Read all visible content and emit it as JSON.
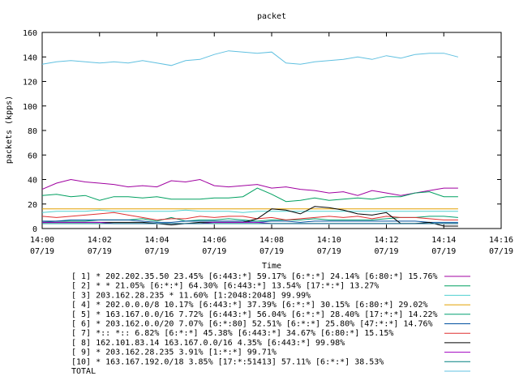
{
  "chart_data": {
    "type": "line",
    "title": "packet",
    "xlabel": "Time",
    "ylabel": "packets (kpps)",
    "ylim": [
      0,
      160
    ],
    "yticks": [
      0,
      20,
      40,
      60,
      80,
      100,
      120,
      140,
      160
    ],
    "xlim": [
      "14:00",
      "14:16"
    ],
    "xticks": [
      {
        "time": "14:00",
        "date": "07/19"
      },
      {
        "time": "14:02",
        "date": "07/19"
      },
      {
        "time": "14:04",
        "date": "07/19"
      },
      {
        "time": "14:06",
        "date": "07/19"
      },
      {
        "time": "14:08",
        "date": "07/19"
      },
      {
        "time": "14:10",
        "date": "07/19"
      },
      {
        "time": "14:12",
        "date": "07/19"
      },
      {
        "time": "14:14",
        "date": "07/19"
      },
      {
        "time": "14:16",
        "date": "07/19"
      }
    ],
    "grid": false,
    "legend_position": "bottom",
    "x": [
      0,
      0.5,
      1,
      1.5,
      2,
      2.5,
      3,
      3.5,
      4,
      4.5,
      5,
      5.5,
      6,
      6.5,
      7,
      7.5,
      8,
      8.5,
      9,
      9.5,
      10,
      10.5,
      11,
      11.5,
      12,
      12.5,
      13,
      13.5,
      14,
      14.5
    ],
    "x_unit": "minutes after 14:00",
    "series": [
      {
        "name": "[ 1] * 202.202.35.50 23.45%  [6:443:*] 59.17% [6:*:*] 24.14% [6:80:*] 15.76%",
        "color": "#a000a0",
        "values": [
          32,
          37,
          40,
          38,
          37,
          36,
          34,
          35,
          34,
          39,
          38,
          40,
          35,
          34,
          35,
          36,
          33,
          34,
          32,
          31,
          29,
          30,
          27,
          31,
          29,
          27,
          29,
          31,
          33,
          33
        ]
      },
      {
        "name": "[ 2] * * 21.05%  [6:*:*] 64.30% [6:443:*] 13.54% [17:*:*] 13.27%",
        "color": "#00a060",
        "values": [
          27,
          28,
          26,
          27,
          23,
          26,
          26,
          25,
          26,
          24,
          24,
          24,
          25,
          25,
          26,
          33,
          28,
          22,
          23,
          25,
          23,
          24,
          25,
          24,
          26,
          26,
          29,
          30,
          26,
          26
        ]
      },
      {
        "name": "[ 3] 203.162.28.235 * 11.60%  [1:2048:2048] 99.99%",
        "color": "#50d0d0",
        "values": [
          13,
          14,
          14,
          14,
          15,
          14,
          14,
          14,
          14,
          14,
          15,
          14,
          14,
          14,
          13,
          14,
          14,
          14,
          14,
          14,
          14,
          14,
          14,
          14,
          14,
          14,
          14,
          14,
          14,
          14
        ]
      },
      {
        "name": "[ 4] * 202.0.0.0/8 10.17%  [6:443:*] 37.39% [6:*:*] 30.15% [6:80:*] 29.02%",
        "color": "#e0a000",
        "values": [
          16,
          16,
          16,
          16,
          16,
          16,
          16,
          16,
          16,
          16,
          16,
          16,
          16,
          16,
          16,
          16,
          16,
          16,
          16,
          16,
          16,
          16,
          16,
          16,
          16,
          16,
          16,
          16,
          16,
          16
        ]
      },
      {
        "name": "[ 5] * 163.167.0.0/16 7.72%  [6:443:*] 56.04% [6:*:*] 28.40% [17:*:*] 14.22%",
        "color": "#00a070",
        "values": [
          5,
          6,
          6,
          6,
          7,
          7,
          7,
          8,
          6,
          9,
          6,
          7,
          7,
          8,
          7,
          6,
          7,
          7,
          7,
          8,
          7,
          7,
          7,
          7,
          8,
          9,
          9,
          10,
          10,
          9
        ]
      },
      {
        "name": "[ 6] * 203.162.0.0/20 7.07%  [6:*:80] 52.51% [6:*:*] 25.80% [47:*:*] 14.76%",
        "color": "#0050a0",
        "values": [
          6,
          6,
          7,
          7,
          7,
          7,
          7,
          6,
          5,
          5,
          6,
          6,
          6,
          6,
          6,
          5,
          6,
          6,
          5,
          6,
          6,
          6,
          6,
          6,
          6,
          6,
          6,
          5,
          5,
          5
        ]
      },
      {
        "name": "[ 7] *:: *:: 6.82%  [6:*:*] 45.38% [6:443:*] 34.67% [6:80:*] 15.15%",
        "color": "#e03030",
        "values": [
          10,
          9,
          10,
          11,
          12,
          13,
          11,
          9,
          7,
          8,
          8,
          10,
          9,
          10,
          10,
          8,
          9,
          7,
          8,
          9,
          10,
          9,
          10,
          8,
          10,
          9,
          9,
          8,
          7,
          7
        ]
      },
      {
        "name": "[ 8] 162.101.83.14 163.167.0.0/16 4.35%  [6:443:*] 99.98%",
        "color": "#000000",
        "values": [
          5,
          5,
          5,
          5,
          5,
          5,
          5,
          5,
          4,
          3,
          4,
          5,
          5,
          5,
          5,
          8,
          16,
          15,
          12,
          18,
          17,
          15,
          12,
          11,
          13,
          4,
          4,
          5,
          2,
          2
        ]
      },
      {
        "name": "[ 9] * 203.162.28.235 3.91%  [1:*:*] 99.71%",
        "color": "#a000c0",
        "values": [
          5,
          5,
          5,
          5,
          5,
          4,
          4,
          4,
          4,
          4,
          4,
          4,
          5,
          5,
          5,
          5,
          4,
          4,
          4,
          4,
          4,
          4,
          4,
          4,
          4,
          4,
          4,
          4,
          4,
          4
        ]
      },
      {
        "name": "[10] * 163.167.192.0/18 3.85%  [17:*:51413] 57.11% [6:*:*] 38.53%",
        "color": "#008080",
        "values": [
          4,
          4,
          4,
          4,
          4,
          4,
          4,
          4,
          4,
          4,
          4,
          4,
          4,
          4,
          4,
          4,
          4,
          4,
          4,
          4,
          4,
          4,
          4,
          4,
          4,
          4,
          4,
          4,
          4,
          4
        ]
      },
      {
        "name": "TOTAL",
        "color": "#60c0e0",
        "values": [
          134,
          136,
          137,
          136,
          135,
          136,
          135,
          137,
          135,
          133,
          137,
          138,
          142,
          145,
          144,
          143,
          144,
          135,
          134,
          136,
          137,
          138,
          140,
          138,
          141,
          139,
          142,
          143,
          143,
          140
        ]
      }
    ]
  }
}
